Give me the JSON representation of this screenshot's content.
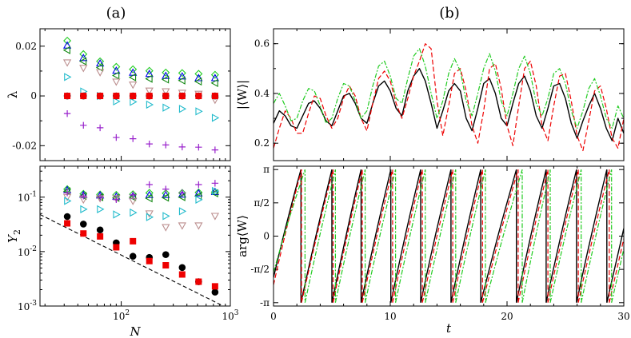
{
  "panel_labels": {
    "a": "(a)",
    "b": "(b)"
  },
  "chart_data": [
    {
      "id": "a-top",
      "type": "scatter",
      "xscale": "log",
      "xlim": [
        18,
        1000
      ],
      "ylim": [
        -0.026,
        0.027
      ],
      "ylabel": "λ",
      "yticks": [
        {
          "v": 0.02,
          "label": "0.02"
        },
        {
          "v": 0,
          "label": "0"
        },
        {
          "v": -0.02,
          "label": "-0.02"
        }
      ],
      "x": [
        32,
        45,
        64,
        90,
        128,
        181,
        256,
        362,
        512,
        724
      ],
      "series": [
        {
          "name": "green-diamond",
          "marker": "diamond",
          "color": "#22cc22",
          "values": [
            0.0222,
            0.0168,
            0.0139,
            0.0117,
            0.0107,
            0.0101,
            0.0094,
            0.0092,
            0.0089,
            0.0085
          ]
        },
        {
          "name": "blue-triangle-up",
          "marker": "tri-up",
          "color": "#0000ee",
          "values": [
            0.0203,
            0.0153,
            0.0131,
            0.0102,
            0.0094,
            0.0089,
            0.0081,
            0.0079,
            0.0072,
            0.0072
          ]
        },
        {
          "name": "green-triangle-left",
          "marker": "tri-left",
          "color": "#118811",
          "values": [
            0.0184,
            0.0139,
            0.0114,
            0.0082,
            0.0075,
            0.0069,
            0.0066,
            0.0062,
            0.0058,
            0.0052
          ]
        },
        {
          "name": "tan-triangle-down",
          "marker": "tri-down",
          "color": "#bc8f8f",
          "values": [
            0.0134,
            0.0112,
            0.0095,
            0.0057,
            0.0045,
            0.0021,
            0.0018,
            0.0012,
            0.0008,
            -0.0016
          ]
        },
        {
          "name": "cyan-triangle-right",
          "marker": "tri-right",
          "color": "#22bbcc",
          "values": [
            0.0076,
            0.0018,
            0.0,
            -0.0022,
            -0.0024,
            -0.0035,
            -0.0047,
            -0.0052,
            -0.0062,
            -0.0088
          ]
        },
        {
          "name": "purple-plus",
          "marker": "plus",
          "color": "#9922cc",
          "values": [
            -0.0071,
            -0.0118,
            -0.0128,
            -0.0167,
            -0.0172,
            -0.0193,
            -0.0197,
            -0.0205,
            -0.0206,
            -0.0217
          ]
        },
        {
          "name": "black-circle",
          "marker": "circle",
          "color": "#000000",
          "values": [
            0,
            0,
            0,
            0,
            0,
            0,
            0,
            0,
            0,
            0
          ]
        },
        {
          "name": "red-square",
          "marker": "square",
          "color": "#ee0000",
          "values": [
            0,
            0,
            0,
            0,
            0,
            0,
            0,
            0,
            0,
            0
          ]
        }
      ]
    },
    {
      "id": "a-bottom",
      "type": "scatter",
      "xscale": "log",
      "yscale": "log",
      "xlim": [
        18,
        1000
      ],
      "ylim": [
        0.001,
        0.37
      ],
      "xlabel": "N",
      "ylabel": "Y",
      "ylabel_sub": "2",
      "yticks": [
        {
          "v": 0.1,
          "base": "10",
          "exp": "-1"
        },
        {
          "v": 0.01,
          "base": "10",
          "exp": "-2"
        },
        {
          "v": 0.001,
          "base": "10",
          "exp": "-3"
        }
      ],
      "xticks": [
        {
          "v": 100,
          "base": "10",
          "exp": "2"
        },
        {
          "v": 1000,
          "base": "10",
          "exp": "3"
        }
      ],
      "x": [
        32,
        45,
        64,
        90,
        128,
        181,
        256,
        362,
        512,
        724
      ],
      "series": [
        {
          "name": "green-diamond",
          "marker": "diamond",
          "color": "#22cc22",
          "values": [
            0.14,
            0.115,
            0.112,
            0.11,
            0.113,
            0.12,
            0.118,
            0.12,
            0.122,
            0.125
          ]
        },
        {
          "name": "blue-triangle-up",
          "marker": "tri-up",
          "color": "#0000ee",
          "values": [
            0.135,
            0.11,
            0.108,
            0.103,
            0.105,
            0.11,
            0.11,
            0.112,
            0.118,
            0.125
          ]
        },
        {
          "name": "green-triangle-left",
          "marker": "tri-left",
          "color": "#118811",
          "values": [
            0.128,
            0.105,
            0.1,
            0.097,
            0.1,
            0.095,
            0.098,
            0.1,
            0.105,
            0.118
          ]
        },
        {
          "name": "tan-triangle-down",
          "marker": "tri-down",
          "color": "#bc8f8f",
          "values": [
            0.1,
            0.09,
            0.095,
            0.095,
            0.085,
            0.05,
            0.028,
            0.03,
            0.03,
            0.045
          ]
        },
        {
          "name": "cyan-triangle-right",
          "marker": "tri-right",
          "color": "#22bbcc",
          "values": [
            0.085,
            0.06,
            0.06,
            0.048,
            0.052,
            0.043,
            0.045,
            0.055,
            0.09,
            0.13
          ]
        },
        {
          "name": "purple-plus",
          "marker": "plus",
          "color": "#9922cc",
          "values": [
            0.12,
            0.105,
            0.1,
            0.09,
            0.11,
            0.17,
            0.14,
            0.12,
            0.17,
            0.18
          ]
        },
        {
          "name": "black-circle",
          "marker": "circle",
          "color": "#000000",
          "values": [
            0.044,
            0.032,
            0.025,
            0.0145,
            0.0082,
            0.0078,
            0.0088,
            0.0051,
            0.0028,
            0.0018
          ]
        },
        {
          "name": "red-square",
          "marker": "square",
          "color": "#ee0000",
          "values": [
            0.033,
            0.0215,
            0.019,
            0.012,
            0.0155,
            0.0067,
            0.0056,
            0.0038,
            0.0028,
            0.0023
          ]
        }
      ],
      "reference_line": {
        "style": "dashed",
        "color": "#000000",
        "x": [
          18,
          820
        ],
        "y": [
          0.048,
          0.00105
        ]
      }
    },
    {
      "id": "b-top",
      "type": "line",
      "xlim": [
        0,
        30
      ],
      "ylim": [
        0.13,
        0.66
      ],
      "ylabel": "|⟨W⟩|",
      "yticks": [
        {
          "v": 0.2,
          "label": "0.2"
        },
        {
          "v": 0.4,
          "label": "0.4"
        },
        {
          "v": 0.6,
          "label": "0.6"
        }
      ],
      "series": [
        {
          "name": "black-solid",
          "style": "solid",
          "color": "#000000",
          "x": [
            0,
            0.5,
            1.0,
            1.5,
            2.0,
            2.5,
            3.0,
            3.5,
            4.0,
            4.5,
            5.0,
            5.5,
            6.0,
            6.5,
            7.0,
            7.5,
            8.0,
            8.5,
            9.0,
            9.5,
            10.0,
            10.5,
            11.0,
            11.5,
            12.0,
            12.5,
            13.0,
            13.5,
            14.0,
            14.5,
            15.0,
            15.5,
            16.0,
            16.5,
            17.0,
            17.5,
            18.0,
            18.5,
            19.0,
            19.5,
            20.0,
            20.5,
            21.0,
            21.5,
            22.0,
            22.5,
            23.0,
            23.5,
            24.0,
            24.5,
            25.0,
            25.5,
            26.0,
            26.5,
            27.0,
            27.5,
            28.0,
            28.5,
            29.0,
            29.5,
            30.0
          ],
          "values": [
            0.28,
            0.33,
            0.31,
            0.27,
            0.26,
            0.31,
            0.36,
            0.37,
            0.34,
            0.29,
            0.27,
            0.33,
            0.39,
            0.4,
            0.36,
            0.3,
            0.28,
            0.36,
            0.43,
            0.45,
            0.41,
            0.34,
            0.31,
            0.41,
            0.47,
            0.5,
            0.45,
            0.36,
            0.26,
            0.33,
            0.41,
            0.44,
            0.41,
            0.3,
            0.25,
            0.34,
            0.44,
            0.46,
            0.4,
            0.3,
            0.27,
            0.36,
            0.44,
            0.47,
            0.41,
            0.31,
            0.26,
            0.34,
            0.43,
            0.44,
            0.38,
            0.28,
            0.22,
            0.29,
            0.35,
            0.4,
            0.34,
            0.26,
            0.21,
            0.3,
            0.24
          ]
        },
        {
          "name": "red-dashed",
          "style": "dashed",
          "color": "#ee0000",
          "x": [
            0,
            0.5,
            1.0,
            1.5,
            2.0,
            2.5,
            3.0,
            3.5,
            4.0,
            4.5,
            5.0,
            5.5,
            6.0,
            6.5,
            7.0,
            7.5,
            8.0,
            8.5,
            9.0,
            9.5,
            10.0,
            10.5,
            11.0,
            11.5,
            12.0,
            12.5,
            13.0,
            13.5,
            14.0,
            14.5,
            15.0,
            15.5,
            16.0,
            16.5,
            17.0,
            17.5,
            18.0,
            18.5,
            19.0,
            19.5,
            20.0,
            20.5,
            21.0,
            21.5,
            22.0,
            22.5,
            23.0,
            23.5,
            24.0,
            24.5,
            25.0,
            25.5,
            26.0,
            26.5,
            27.0,
            27.5,
            28.0,
            28.5,
            29.0,
            29.5,
            30.0
          ],
          "values": [
            0.18,
            0.26,
            0.33,
            0.3,
            0.24,
            0.24,
            0.32,
            0.39,
            0.38,
            0.31,
            0.26,
            0.3,
            0.38,
            0.43,
            0.39,
            0.3,
            0.25,
            0.36,
            0.46,
            0.49,
            0.45,
            0.36,
            0.3,
            0.38,
            0.47,
            0.53,
            0.6,
            0.58,
            0.37,
            0.23,
            0.35,
            0.48,
            0.5,
            0.41,
            0.27,
            0.2,
            0.33,
            0.5,
            0.52,
            0.42,
            0.27,
            0.19,
            0.35,
            0.5,
            0.53,
            0.43,
            0.27,
            0.21,
            0.35,
            0.47,
            0.48,
            0.37,
            0.23,
            0.17,
            0.29,
            0.41,
            0.43,
            0.34,
            0.22,
            0.18,
            0.3
          ]
        },
        {
          "name": "green-dashdot",
          "style": "dashdot",
          "color": "#22cc22",
          "x": [
            0,
            0.5,
            1.0,
            1.5,
            2.0,
            2.5,
            3.0,
            3.5,
            4.0,
            4.5,
            5.0,
            5.5,
            6.0,
            6.5,
            7.0,
            7.5,
            8.0,
            8.5,
            9.0,
            9.5,
            10.0,
            10.5,
            11.0,
            11.5,
            12.0,
            12.5,
            13.0,
            13.5,
            14.0,
            14.5,
            15.0,
            15.5,
            16.0,
            16.5,
            17.0,
            17.5,
            18.0,
            18.5,
            19.0,
            19.5,
            20.0,
            20.5,
            21.0,
            21.5,
            22.0,
            22.5,
            23.0,
            23.5,
            24.0,
            24.5,
            25.0,
            25.5,
            26.0,
            26.5,
            27.0,
            27.5,
            28.0,
            28.5,
            29.0,
            29.5,
            30.0
          ],
          "values": [
            0.36,
            0.4,
            0.35,
            0.29,
            0.3,
            0.37,
            0.42,
            0.41,
            0.35,
            0.28,
            0.3,
            0.38,
            0.44,
            0.43,
            0.37,
            0.3,
            0.33,
            0.43,
            0.51,
            0.53,
            0.47,
            0.38,
            0.36,
            0.46,
            0.55,
            0.58,
            0.51,
            0.4,
            0.3,
            0.37,
            0.48,
            0.54,
            0.49,
            0.37,
            0.31,
            0.4,
            0.5,
            0.56,
            0.49,
            0.37,
            0.31,
            0.4,
            0.5,
            0.55,
            0.48,
            0.36,
            0.31,
            0.38,
            0.48,
            0.5,
            0.44,
            0.33,
            0.26,
            0.33,
            0.42,
            0.46,
            0.39,
            0.3,
            0.26,
            0.35,
            0.3
          ]
        }
      ]
    },
    {
      "id": "b-bottom",
      "type": "line",
      "xlim": [
        0,
        30
      ],
      "ylim": [
        -3.3,
        3.3
      ],
      "xlabel": "t",
      "ylabel": "arg⟨W⟩",
      "xticks": [
        {
          "v": 0,
          "label": "0"
        },
        {
          "v": 10,
          "label": "10"
        },
        {
          "v": 20,
          "label": "20"
        },
        {
          "v": 30,
          "label": "30"
        }
      ],
      "yticks": [
        {
          "v": 3.14159,
          "label": "π"
        },
        {
          "v": 1.5708,
          "label": "π/2"
        },
        {
          "v": 0,
          "label": "0"
        },
        {
          "v": -1.5708,
          "label": "-π/2"
        },
        {
          "v": -3.14159,
          "label": "-π"
        }
      ],
      "series": [
        {
          "name": "black-solid",
          "style": "solid",
          "color": "#000000",
          "wrap_times": [
            2.35,
            5.0,
            7.5,
            10.05,
            12.6,
            15.2,
            17.75,
            20.8,
            23.35,
            25.95,
            28.55
          ],
          "start_phase": -1.95
        },
        {
          "name": "red-dashed",
          "style": "dashed",
          "color": "#ee0000",
          "wrap_times": [
            2.4,
            5.1,
            7.6,
            10.2,
            12.75,
            15.35,
            17.9,
            20.95,
            23.5,
            26.1,
            28.75
          ],
          "start_phase": -2.3
        },
        {
          "name": "green-dashdot",
          "style": "dashdot",
          "color": "#22cc22",
          "wrap_times": [
            2.7,
            5.3,
            7.85,
            10.45,
            13.0,
            15.6,
            18.15,
            21.3,
            23.7,
            26.35,
            28.95
          ],
          "start_phase": -1.7
        }
      ]
    }
  ]
}
